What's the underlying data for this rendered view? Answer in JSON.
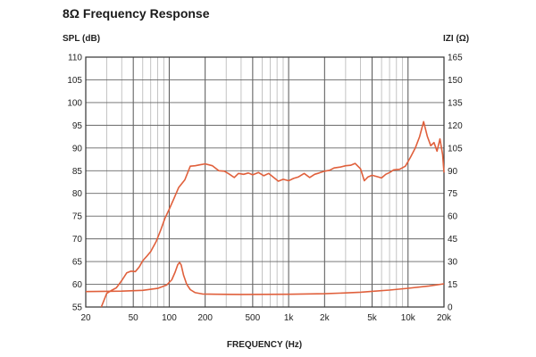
{
  "chart_data": {
    "type": "line",
    "title": "8Ω Frequency Response",
    "xlabel": "FREQUENCY (Hz)",
    "ylabel": "SPL (dB)",
    "y2label": "IZI (Ω)",
    "x_scale": "log",
    "xlim": [
      20,
      20000
    ],
    "ylim": [
      55,
      110
    ],
    "y2lim": [
      0,
      165
    ],
    "grid": true,
    "x_tick_values": [
      20,
      50,
      100,
      200,
      500,
      1000,
      2000,
      5000,
      10000,
      20000
    ],
    "x_tick_labels": [
      "20",
      "50",
      "100",
      "200",
      "500",
      "1k",
      "2k",
      "5k",
      "10k",
      "20k"
    ],
    "y_ticks": [
      110,
      105,
      100,
      95,
      90,
      85,
      80,
      75,
      70,
      65,
      60,
      55
    ],
    "y2_ticks": [
      165,
      150,
      135,
      120,
      105,
      90,
      75,
      60,
      45,
      30,
      15,
      0
    ],
    "series": [
      {
        "axis": "left",
        "color": "#e0603c",
        "points": [
          [
            27,
            55
          ],
          [
            30,
            58
          ],
          [
            33,
            58.7
          ],
          [
            36,
            59.2
          ],
          [
            40,
            60.8
          ],
          [
            44,
            62.5
          ],
          [
            48,
            62.9
          ],
          [
            52,
            62.8
          ],
          [
            56,
            63.8
          ],
          [
            60,
            65.2
          ],
          [
            65,
            66.2
          ],
          [
            70,
            67.2
          ],
          [
            78,
            69.5
          ],
          [
            85,
            72
          ],
          [
            92,
            74.5
          ],
          [
            100,
            76.5
          ],
          [
            110,
            79
          ],
          [
            120,
            81.3
          ],
          [
            135,
            83
          ],
          [
            150,
            86
          ],
          [
            165,
            86.1
          ],
          [
            180,
            86.3
          ],
          [
            200,
            86.5
          ],
          [
            230,
            86.1
          ],
          [
            260,
            85
          ],
          [
            290,
            84.9
          ],
          [
            320,
            84.2
          ],
          [
            350,
            83.5
          ],
          [
            380,
            84.4
          ],
          [
            420,
            84.2
          ],
          [
            460,
            84.5
          ],
          [
            500,
            84.1
          ],
          [
            560,
            84.6
          ],
          [
            620,
            83.9
          ],
          [
            680,
            84.4
          ],
          [
            750,
            83.5
          ],
          [
            820,
            82.7
          ],
          [
            900,
            83.1
          ],
          [
            1000,
            82.8
          ],
          [
            1100,
            83.3
          ],
          [
            1200,
            83.6
          ],
          [
            1350,
            84.4
          ],
          [
            1500,
            83.5
          ],
          [
            1650,
            84.2
          ],
          [
            1800,
            84.5
          ],
          [
            2000,
            84.9
          ],
          [
            2200,
            85.1
          ],
          [
            2400,
            85.6
          ],
          [
            2700,
            85.8
          ],
          [
            3000,
            86.1
          ],
          [
            3300,
            86.2
          ],
          [
            3600,
            86.6
          ],
          [
            4000,
            85.4
          ],
          [
            4300,
            82.8
          ],
          [
            4600,
            83.6
          ],
          [
            5000,
            84
          ],
          [
            5500,
            83.7
          ],
          [
            6000,
            83.4
          ],
          [
            6500,
            84.2
          ],
          [
            7000,
            84.6
          ],
          [
            7600,
            85.2
          ],
          [
            8500,
            85.3
          ],
          [
            9500,
            86
          ],
          [
            10500,
            88
          ],
          [
            11500,
            90
          ],
          [
            12500,
            92.5
          ],
          [
            13500,
            95.8
          ],
          [
            14500,
            92.6
          ],
          [
            15500,
            90.5
          ],
          [
            16500,
            91.2
          ],
          [
            17500,
            89.3
          ],
          [
            18500,
            92
          ],
          [
            19500,
            88.5
          ],
          [
            20000,
            84.6
          ]
        ]
      },
      {
        "axis": "right",
        "color": "#e0603c",
        "points": [
          [
            20,
            10.2
          ],
          [
            40,
            10.5
          ],
          [
            60,
            11
          ],
          [
            80,
            12.3
          ],
          [
            95,
            14.5
          ],
          [
            105,
            18
          ],
          [
            112,
            23
          ],
          [
            118,
            28
          ],
          [
            122,
            29.4
          ],
          [
            126,
            27.8
          ],
          [
            132,
            21
          ],
          [
            140,
            15
          ],
          [
            150,
            11.5
          ],
          [
            165,
            9.5
          ],
          [
            190,
            8.6
          ],
          [
            250,
            8.4
          ],
          [
            400,
            8.3
          ],
          [
            1000,
            8.4
          ],
          [
            2000,
            8.8
          ],
          [
            3000,
            9.3
          ],
          [
            4000,
            9.8
          ],
          [
            5000,
            10.4
          ],
          [
            7000,
            11.2
          ],
          [
            10000,
            12.4
          ],
          [
            15000,
            13.9
          ],
          [
            20000,
            15.3
          ]
        ]
      }
    ]
  }
}
